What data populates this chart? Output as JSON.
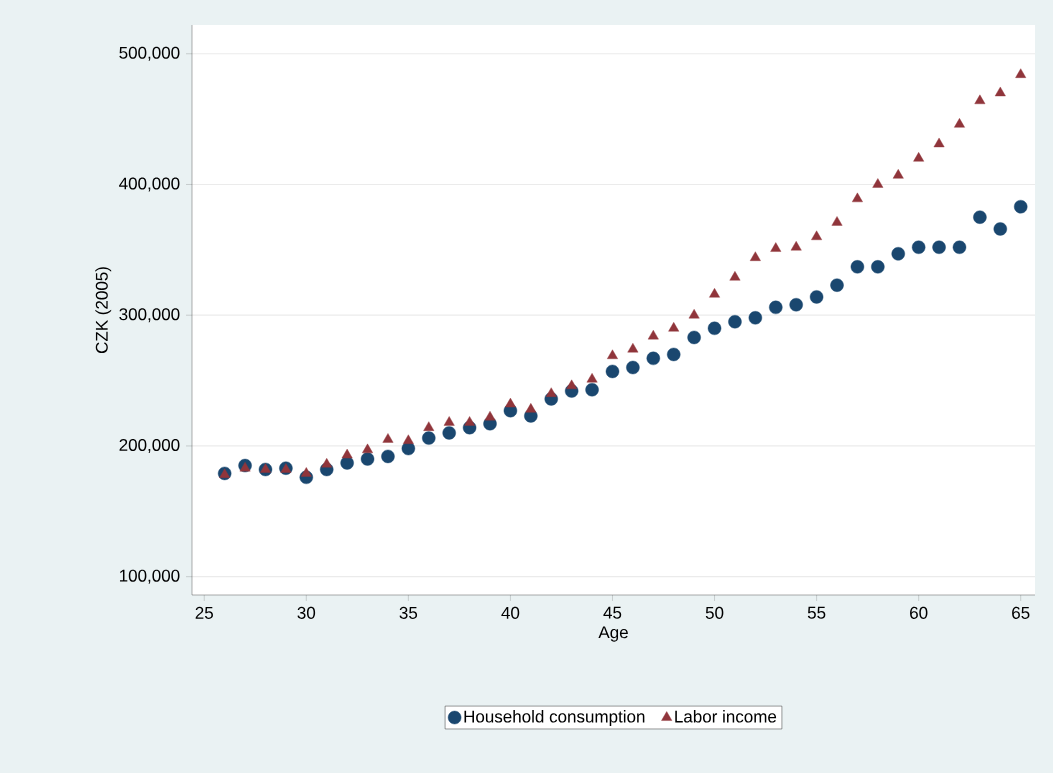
{
  "chart_data": {
    "type": "scatter",
    "xlabel": "Age",
    "ylabel": "CZK (2005)",
    "x": [
      26,
      27,
      28,
      29,
      30,
      31,
      32,
      33,
      34,
      35,
      36,
      37,
      38,
      39,
      40,
      41,
      42,
      43,
      44,
      45,
      46,
      47,
      48,
      49,
      50,
      51,
      52,
      53,
      54,
      55,
      56,
      57,
      58,
      59,
      60,
      61,
      62,
      63,
      64,
      65
    ],
    "series": [
      {
        "name": "Household consumption",
        "color": "#1a476f",
        "marker": "circle",
        "values": [
          179000,
          185000,
          182000,
          183000,
          176000,
          182000,
          187000,
          190000,
          192000,
          198000,
          206000,
          210000,
          214000,
          217000,
          227000,
          223000,
          236000,
          242000,
          243000,
          257000,
          260000,
          267000,
          270000,
          283000,
          290000,
          295000,
          298000,
          306000,
          308000,
          314000,
          323000,
          337000,
          337000,
          347000,
          352000,
          352000,
          352000,
          375000,
          366000,
          383000
        ]
      },
      {
        "name": "Labor income",
        "color": "#90353b",
        "marker": "triangle",
        "values": [
          178000,
          183000,
          182000,
          182000,
          179000,
          186000,
          193000,
          197000,
          205000,
          204000,
          214000,
          218000,
          218000,
          222000,
          232000,
          228000,
          240000,
          246000,
          251000,
          269000,
          274000,
          284000,
          290000,
          300000,
          316000,
          329000,
          344000,
          351000,
          352000,
          360000,
          371000,
          389000,
          400000,
          407000,
          420000,
          431000,
          446000,
          464000,
          470000,
          484000
        ]
      }
    ],
    "xlim": [
      24.4,
      65.7
    ],
    "ylim": [
      86000,
      522000
    ],
    "xticks": [
      25,
      30,
      35,
      40,
      45,
      50,
      55,
      60,
      65
    ],
    "yticks": [
      {
        "value": 100000,
        "label": "100,000"
      },
      {
        "value": 200000,
        "label": "200,000"
      },
      {
        "value": 300000,
        "label": "300,000"
      },
      {
        "value": 400000,
        "label": "400,000"
      },
      {
        "value": 500000,
        "label": "500,000"
      }
    ],
    "grid": "y",
    "legend": "bottom"
  }
}
